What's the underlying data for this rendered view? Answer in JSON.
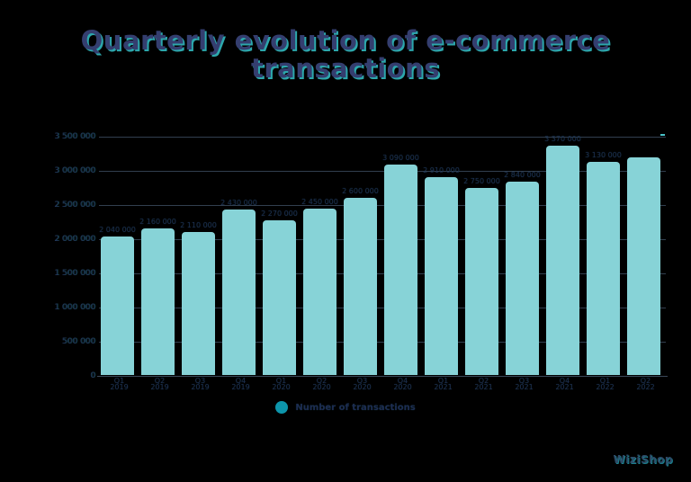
{
  "title": {
    "line1": "Quarterly evolution of e-commerce",
    "line2": "transactions"
  },
  "legend": {
    "label": "Number of transactions",
    "marker_color": "#0d95ab"
  },
  "watermark": "WiziShop",
  "colors": {
    "background": "#000000",
    "bar": "#87d3d7",
    "title_fill": "#343e6f",
    "title_shadow": "#2ca7ac",
    "axis_text": "#24375d",
    "gridline": "#323f4f",
    "legend_marker": "#0d95ab"
  },
  "chart_data": {
    "type": "bar",
    "title": "Quarterly evolution of e-commerce transactions",
    "xlabel": "",
    "ylabel": "",
    "ylim": [
      0,
      3500000
    ],
    "grid": true,
    "legend_position": "bottom",
    "legend_label": "Number of transactions",
    "categories": [
      "Q1 2019",
      "Q2 2019",
      "Q3 2019",
      "Q4 2019",
      "Q1 2020",
      "Q2 2020",
      "Q3 2020",
      "Q4 2020",
      "Q1 2021",
      "Q2 2021",
      "Q3 2021",
      "Q4 2021",
      "Q1 2022",
      "Q2 2022"
    ],
    "category_lines": [
      {
        "line1": "Q1",
        "line2": "2019"
      },
      {
        "line1": "Q2",
        "line2": "2019"
      },
      {
        "line1": "Q3",
        "line2": "2019"
      },
      {
        "line1": "Q4",
        "line2": "2019"
      },
      {
        "line1": "Q1",
        "line2": "2020"
      },
      {
        "line1": "Q2",
        "line2": "2020"
      },
      {
        "line1": "Q3",
        "line2": "2020"
      },
      {
        "line1": "Q4",
        "line2": "2020"
      },
      {
        "line1": "Q1",
        "line2": "2021"
      },
      {
        "line1": "Q2",
        "line2": "2021"
      },
      {
        "line1": "Q3",
        "line2": "2021"
      },
      {
        "line1": "Q4",
        "line2": "2021"
      },
      {
        "line1": "Q1",
        "line2": "2022"
      },
      {
        "line1": "Q2",
        "line2": "2022"
      }
    ],
    "values": [
      2040000,
      2160000,
      2110000,
      2430000,
      2270000,
      2450000,
      2600000,
      3090000,
      2910000,
      2750000,
      2840000,
      3370000,
      3130000,
      3200000
    ],
    "data_labels": [
      "2 040 000",
      "2 160 000",
      "2 110 000",
      "2 430 000",
      "2 270 000",
      "2 450 000",
      "2 600 000",
      "3 090 000",
      "2 910 000",
      "2 750 000",
      "2 840 000",
      "3 370 000",
      "3 130 000",
      null
    ],
    "y_ticks": [
      "0",
      "500 000",
      "1 000 000",
      "1 500 000",
      "2 000 000",
      "2 500 000",
      "3 000 000",
      "3 500 000"
    ],
    "y_tick_values": [
      0,
      500000,
      1000000,
      1500000,
      2000000,
      2500000,
      3000000,
      3500000
    ]
  }
}
